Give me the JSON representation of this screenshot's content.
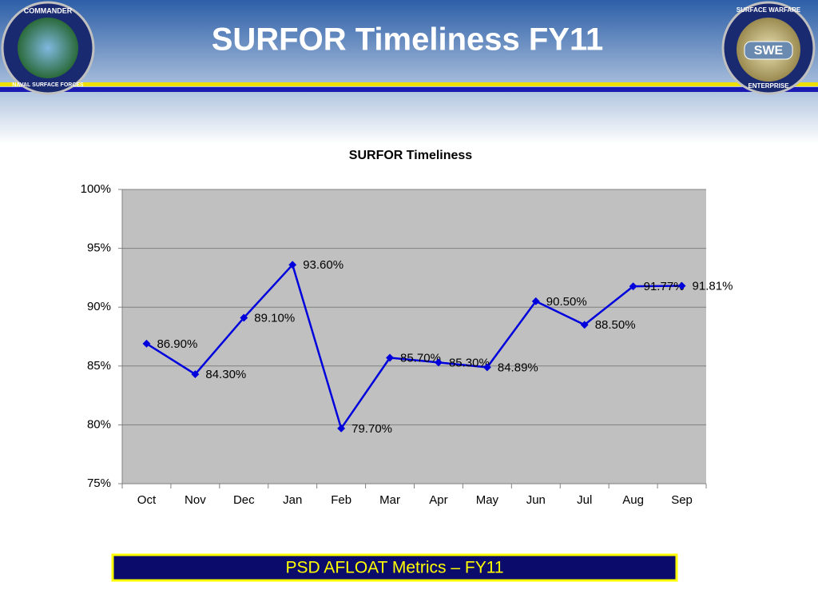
{
  "header": {
    "title": "SURFOR Timeliness FY11",
    "left_logo": {
      "top": "COMMANDER",
      "bottom": "NAVAL SURFACE FORCES"
    },
    "right_logo": {
      "top": "SURFACE WARFARE",
      "center": "SWE",
      "bottom": "ENTERPRISE"
    }
  },
  "chart_data": {
    "type": "line",
    "title": "SURFOR Timeliness",
    "categories": [
      "Oct",
      "Nov",
      "Dec",
      "Jan",
      "Feb",
      "Mar",
      "Apr",
      "May",
      "Jun",
      "Jul",
      "Aug",
      "Sep"
    ],
    "values": [
      86.9,
      84.3,
      89.1,
      93.6,
      79.7,
      85.7,
      85.3,
      84.89,
      90.5,
      88.5,
      91.77,
      91.81
    ],
    "value_labels": [
      "86.90%",
      "84.30%",
      "89.10%",
      "93.60%",
      "79.70%",
      "85.70%",
      "85.30%",
      "84.89%",
      "90.50%",
      "88.50%",
      "91.77%",
      "91.81%"
    ],
    "color": "#0000dd",
    "ylim": [
      75,
      100
    ],
    "yticks": [
      {
        "value": 75,
        "label": "75%"
      },
      {
        "value": 80,
        "label": "80%"
      },
      {
        "value": 85,
        "label": "85%"
      },
      {
        "value": 90,
        "label": "90%"
      },
      {
        "value": 95,
        "label": "95%"
      },
      {
        "value": 100,
        "label": "100%"
      }
    ],
    "grid": true
  },
  "footer": {
    "text": "PSD AFLOAT Metrics – FY11"
  }
}
